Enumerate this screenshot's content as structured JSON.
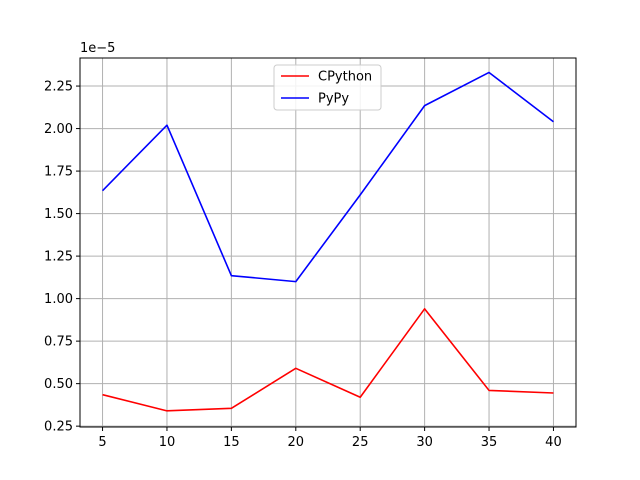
{
  "chart_data": {
    "type": "line",
    "title": "",
    "xlabel": "",
    "ylabel": "",
    "y_offset_label": "1e−5",
    "x": [
      5,
      10,
      15,
      20,
      25,
      30,
      35,
      40
    ],
    "series": [
      {
        "name": "CPython",
        "color": "#ff0000",
        "values": [
          0.435,
          0.34,
          0.355,
          0.59,
          0.42,
          0.94,
          0.46,
          0.445
        ]
      },
      {
        "name": "PyPy",
        "color": "#0000ff",
        "values": [
          1.635,
          2.02,
          1.135,
          1.1,
          1.61,
          2.135,
          2.33,
          2.04
        ]
      }
    ],
    "xlim": [
      3.25,
      41.75
    ],
    "ylim": [
      0.245,
      2.415
    ],
    "x_ticks": [
      5,
      10,
      15,
      20,
      25,
      30,
      35,
      40
    ],
    "y_ticks": [
      0.25,
      0.5,
      0.75,
      1.0,
      1.25,
      1.5,
      1.75,
      2.0,
      2.25
    ],
    "y_tick_labels": [
      "0.25",
      "0.50",
      "0.75",
      "1.00",
      "1.25",
      "1.50",
      "1.75",
      "2.00",
      "2.25"
    ],
    "grid": true,
    "legend": "upper-center"
  }
}
